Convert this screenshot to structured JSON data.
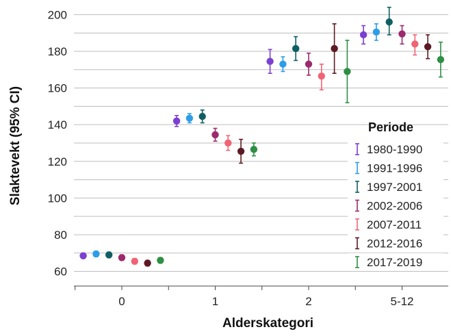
{
  "chart_data": {
    "type": "scatter",
    "xlabel": "Alderskategori",
    "ylabel": "Slaktevekt (95% CI)",
    "categories": [
      "0",
      "1",
      "2",
      "5-12"
    ],
    "yticks": [
      60,
      80,
      100,
      120,
      140,
      160,
      180,
      200
    ],
    "ylim": [
      52,
      205
    ],
    "grid": "horizontal",
    "legend": {
      "title": "Periode",
      "placement": "right"
    },
    "series": [
      {
        "name": "1980-1990",
        "color": "#7b3fd1",
        "values": [
          68.5,
          142,
          174.5,
          189
        ],
        "low": [
          67,
          139,
          168,
          184
        ],
        "high": [
          70,
          145,
          181,
          194
        ]
      },
      {
        "name": "1991-1996",
        "color": "#2e9de8",
        "values": [
          69.5,
          143.5,
          173,
          190.5
        ],
        "low": [
          68,
          141,
          169,
          186
        ],
        "high": [
          71,
          146,
          177,
          195
        ]
      },
      {
        "name": "1997-2001",
        "color": "#0f5f62",
        "values": [
          69,
          144.5,
          181.5,
          196
        ],
        "low": [
          67.5,
          141,
          175,
          189
        ],
        "high": [
          70.5,
          148,
          188,
          204
        ]
      },
      {
        "name": "2002-2006",
        "color": "#9c2a6e",
        "values": [
          67.5,
          134.5,
          173,
          189.5
        ],
        "low": [
          66,
          131,
          167,
          184
        ],
        "high": [
          69,
          138,
          179,
          194
        ]
      },
      {
        "name": "2007-2011",
        "color": "#f06473",
        "values": [
          65.5,
          130,
          166.5,
          184
        ],
        "low": [
          64,
          126,
          159,
          178
        ],
        "high": [
          67,
          134,
          173,
          189
        ]
      },
      {
        "name": "2012-2016",
        "color": "#5c1a24",
        "values": [
          64.5,
          125.5,
          181.5,
          182.5
        ],
        "low": [
          63,
          119,
          168,
          176
        ],
        "high": [
          66,
          132,
          195,
          189
        ]
      },
      {
        "name": "2017-2019",
        "color": "#2e8f44",
        "values": [
          66,
          126.5,
          169,
          175.5
        ],
        "low": [
          64.5,
          123,
          152,
          166
        ],
        "high": [
          67.5,
          130,
          186,
          185
        ]
      }
    ]
  }
}
